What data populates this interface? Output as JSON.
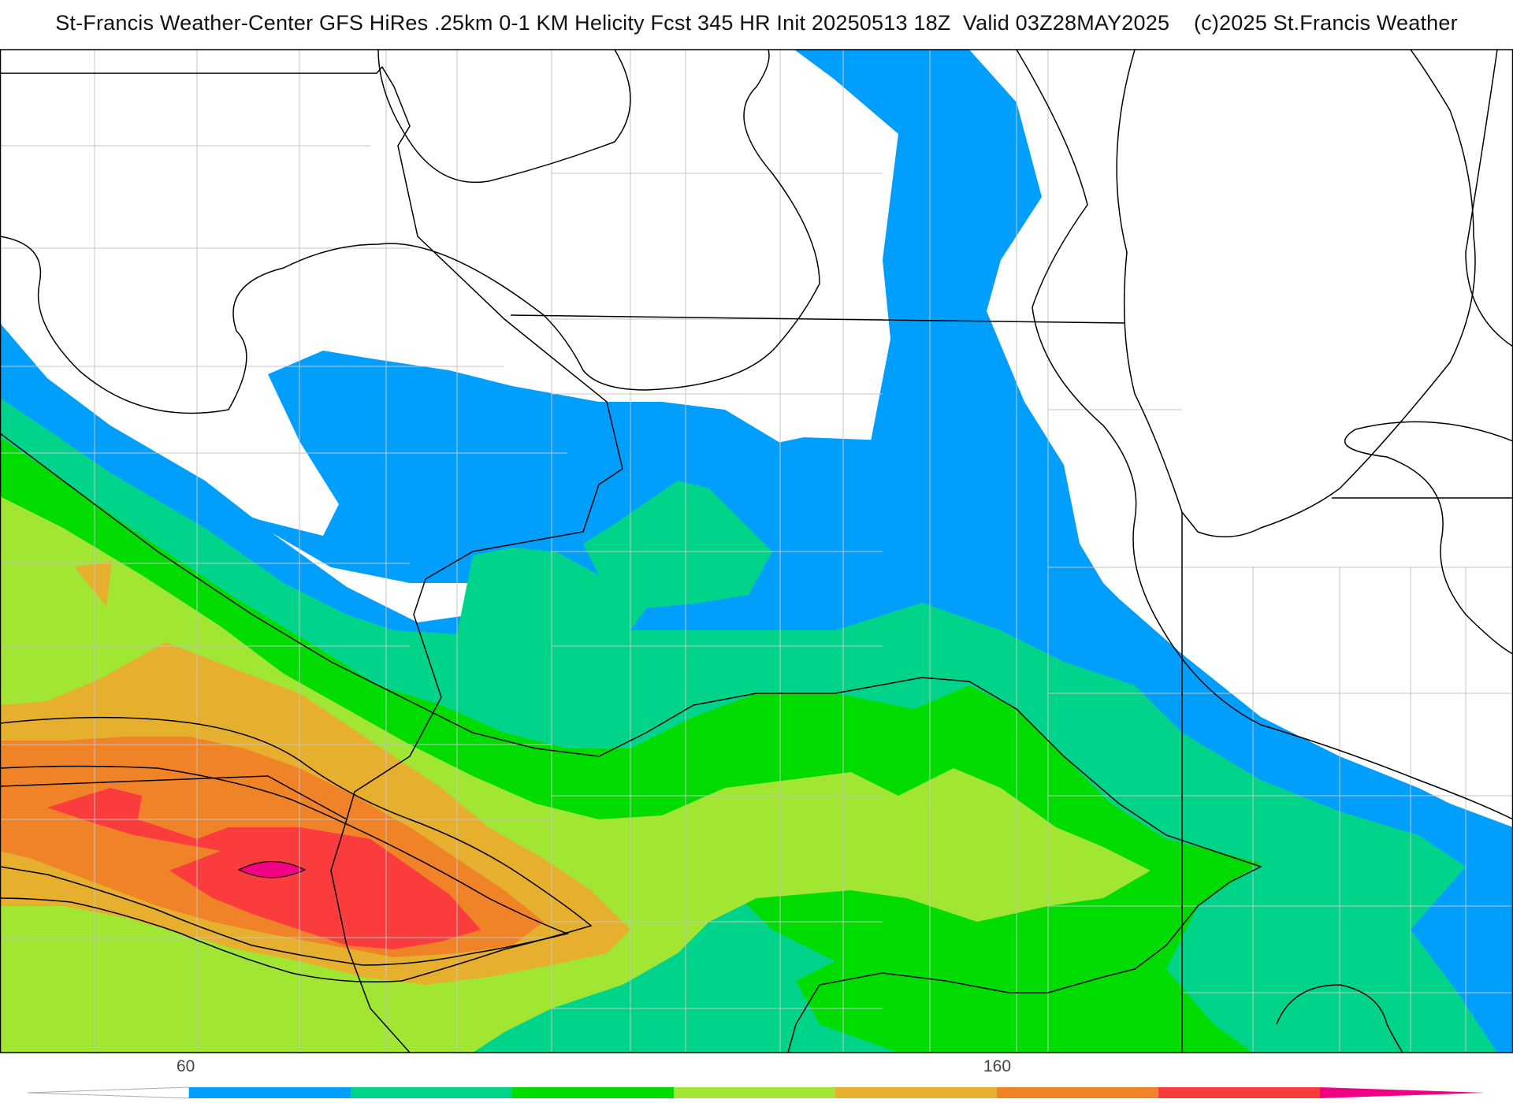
{
  "title": "St-Francis Weather-Center GFS HiRes .25km 0-1 KM Helicity Fcst 345 HR Init 20250513 18Z  Valid 03Z28MAY2025    (c)2025 St.Francis Weather",
  "legend": {
    "tick_labels": [
      "60",
      "160"
    ],
    "bins": [
      {
        "name": "below-60",
        "color": "#ffffff"
      },
      {
        "name": "bin-1",
        "color": "#009ffe"
      },
      {
        "name": "bin-2",
        "color": "#00d38a"
      },
      {
        "name": "bin-3",
        "color": "#00dc00"
      },
      {
        "name": "bin-4",
        "color": "#a1e633"
      },
      {
        "name": "bin-5",
        "color": "#e6af2d"
      },
      {
        "name": "bin-6",
        "color": "#f08228"
      },
      {
        "name": "bin-7",
        "color": "#fa3c3c"
      },
      {
        "name": "bin-8",
        "color": "#f00082"
      }
    ]
  },
  "colors": {
    "border": "#000000",
    "county_lines": "#bbbbbb",
    "background": "#ffffff"
  }
}
